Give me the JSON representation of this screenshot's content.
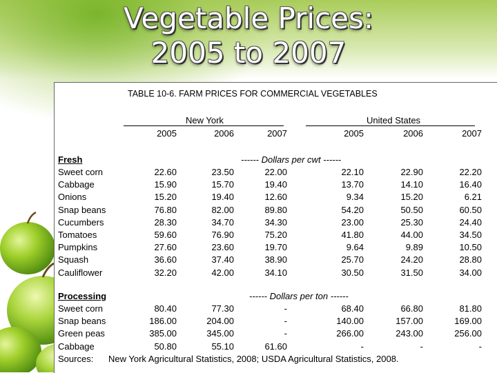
{
  "slide": {
    "title_line1": "Vegetable Prices:",
    "title_line2": "2005 to 2007"
  },
  "table": {
    "caption": "TABLE 10-6. FARM PRICES FOR COMMERCIAL VEGETABLES",
    "group_ny": "New York",
    "group_us": "United States",
    "years": [
      "2005",
      "2006",
      "2007",
      "2005",
      "2006",
      "2007"
    ],
    "fresh": {
      "header": "Fresh",
      "unit": "------ Dollars per cwt ------",
      "rows": [
        {
          "name": "Sweet corn",
          "values": [
            "22.60",
            "23.50",
            "22.00",
            "22.10",
            "22.90",
            "22.20"
          ]
        },
        {
          "name": "Cabbage",
          "values": [
            "15.90",
            "15.70",
            "19.40",
            "13.70",
            "14.10",
            "16.40"
          ]
        },
        {
          "name": "Onions",
          "values": [
            "15.20",
            "19.40",
            "12.60",
            "9.34",
            "15.20",
            "6.21"
          ]
        },
        {
          "name": "Snap beans",
          "values": [
            "76.80",
            "82.00",
            "89.80",
            "54.20",
            "50.50",
            "60.50"
          ]
        },
        {
          "name": "Cucumbers",
          "values": [
            "28.30",
            "34.70",
            "34.30",
            "23.00",
            "25.30",
            "24.40"
          ]
        },
        {
          "name": "Tomatoes",
          "values": [
            "59.60",
            "76.90",
            "75.20",
            "41.80",
            "44.00",
            "34.50"
          ]
        },
        {
          "name": "Pumpkins",
          "values": [
            "27.60",
            "23.60",
            "19.70",
            "9.64",
            "9.89",
            "10.50"
          ]
        },
        {
          "name": "Squash",
          "values": [
            "36.60",
            "37.40",
            "38.90",
            "25.70",
            "24.20",
            "28.80"
          ]
        },
        {
          "name": "Cauliflower",
          "values": [
            "32.20",
            "42.00",
            "34.10",
            "30.50",
            "31.50",
            "34.00"
          ]
        }
      ]
    },
    "processing": {
      "header": "Processing",
      "unit": "------ Dollars per ton ------",
      "rows": [
        {
          "name": "Sweet corn",
          "values": [
            "80.40",
            "77.30",
            "-",
            "68.40",
            "66.80",
            "81.80"
          ]
        },
        {
          "name": "Snap beans",
          "values": [
            "186.00",
            "204.00",
            "-",
            "140.00",
            "157.00",
            "169.00"
          ]
        },
        {
          "name": "Green peas",
          "values": [
            "385.00",
            "345.00",
            "-",
            "266.00",
            "243.00",
            "256.00"
          ]
        },
        {
          "name": "Cabbage",
          "values": [
            "50.80",
            "55.10",
            "61.60",
            "-",
            "-",
            "-"
          ]
        }
      ]
    },
    "sources_label": "Sources:",
    "sources_text": "New York Agricultural Statistics, 2008; USDA Agricultural Statistics, 2008."
  }
}
